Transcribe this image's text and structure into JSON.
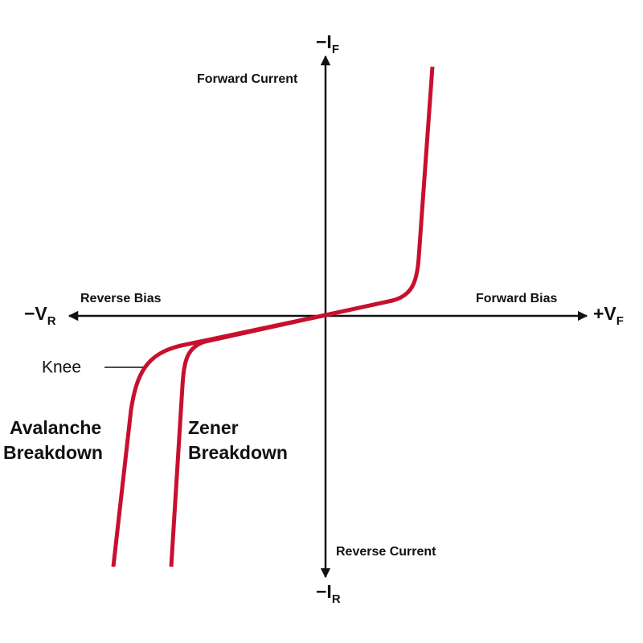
{
  "axes": {
    "top": {
      "symbol": "−I",
      "subscript": "F"
    },
    "bottom": {
      "symbol": "−I",
      "subscript": "R"
    },
    "left": {
      "symbol": "−V",
      "subscript": "R"
    },
    "right": {
      "symbol": "+V",
      "subscript": "F"
    }
  },
  "labels": {
    "forward_current": "Forward Current",
    "reverse_current": "Reverse Current",
    "reverse_bias": "Reverse Bias",
    "forward_bias": "Forward Bias",
    "knee": "Knee",
    "avalanche": [
      "Avalanche",
      "Breakdown"
    ],
    "zener": [
      "Zener",
      "Breakdown"
    ]
  }
}
